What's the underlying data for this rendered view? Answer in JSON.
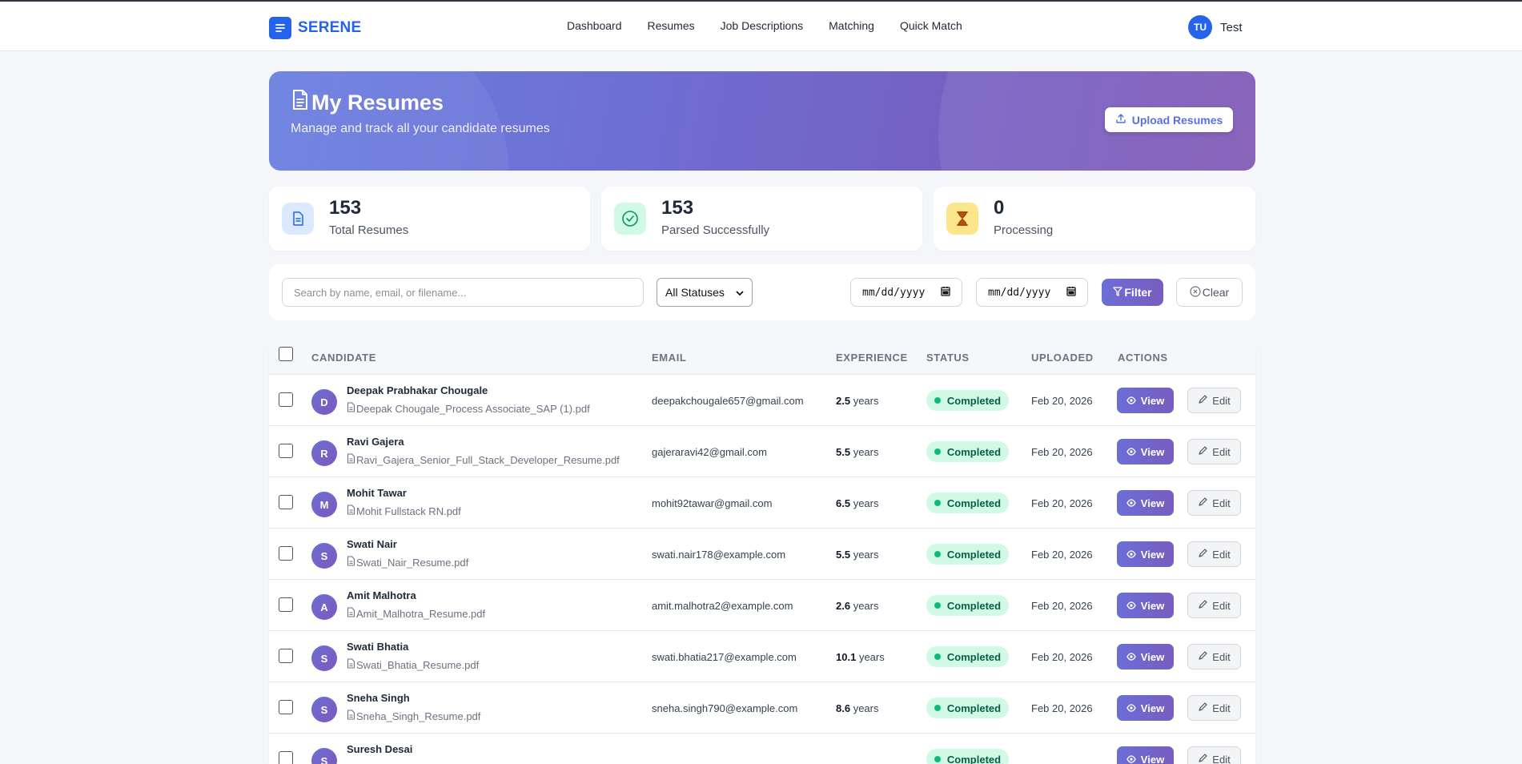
{
  "nav": {
    "brand": "SERENE",
    "links": [
      "Dashboard",
      "Resumes",
      "Job Descriptions",
      "Matching",
      "Quick Match"
    ],
    "user_initials": "TU",
    "user_name": "Test"
  },
  "hero": {
    "title": "My Resumes",
    "subtitle": "Manage and track all your candidate resumes",
    "upload_label": "Upload Resumes"
  },
  "stats": [
    {
      "value": "153",
      "label": "Total Resumes",
      "icon": "document-icon",
      "color": "#dbeafe"
    },
    {
      "value": "153",
      "label": "Parsed Successfully",
      "icon": "check-circle-icon",
      "color": "#d1fae5"
    },
    {
      "value": "0",
      "label": "Processing",
      "icon": "hourglass-icon",
      "color": "#fef3c7"
    }
  ],
  "filters": {
    "search_placeholder": "Search by name, email, or filename...",
    "status_value": "All Statuses",
    "date_from_placeholder": "mm/dd/yyyy",
    "date_to_placeholder": "mm/dd/yyyy",
    "filter_label": "Filter",
    "clear_label": "Clear"
  },
  "table": {
    "columns": [
      "CANDIDATE",
      "EMAIL",
      "EXPERIENCE",
      "STATUS",
      "UPLOADED",
      "ACTIONS"
    ],
    "experience_unit": "years",
    "view_label": "View",
    "edit_label": "Edit",
    "rows": [
      {
        "initial": "D",
        "name": "Deepak Prabhakar Chougale",
        "file": "Deepak Chougale_Process Associate_SAP (1).pdf",
        "email": "deepakchougale657@gmail.com",
        "experience": "2.5",
        "status": "Completed",
        "uploaded": "Feb 20, 2026"
      },
      {
        "initial": "R",
        "name": "Ravi Gajera",
        "file": "Ravi_Gajera_Senior_Full_Stack_Developer_Resume.pdf",
        "email": "gajeraravi42@gmail.com",
        "experience": "5.5",
        "status": "Completed",
        "uploaded": "Feb 20, 2026"
      },
      {
        "initial": "M",
        "name": "Mohit Tawar",
        "file": "Mohit Fullstack RN.pdf",
        "email": "mohit92tawar@gmail.com",
        "experience": "6.5",
        "status": "Completed",
        "uploaded": "Feb 20, 2026"
      },
      {
        "initial": "S",
        "name": "Swati Nair",
        "file": "Swati_Nair_Resume.pdf",
        "email": "swati.nair178@example.com",
        "experience": "5.5",
        "status": "Completed",
        "uploaded": "Feb 20, 2026"
      },
      {
        "initial": "A",
        "name": "Amit Malhotra",
        "file": "Amit_Malhotra_Resume.pdf",
        "email": "amit.malhotra2@example.com",
        "experience": "2.6",
        "status": "Completed",
        "uploaded": "Feb 20, 2026"
      },
      {
        "initial": "S",
        "name": "Swati Bhatia",
        "file": "Swati_Bhatia_Resume.pdf",
        "email": "swati.bhatia217@example.com",
        "experience": "10.1",
        "status": "Completed",
        "uploaded": "Feb 20, 2026"
      },
      {
        "initial": "S",
        "name": "Sneha Singh",
        "file": "Sneha_Singh_Resume.pdf",
        "email": "sneha.singh790@example.com",
        "experience": "8.6",
        "status": "Completed",
        "uploaded": "Feb 20, 2026"
      },
      {
        "initial": "S",
        "name": "Suresh Desai",
        "file": "",
        "email": "",
        "experience": "",
        "status": "Completed",
        "uploaded": ""
      }
    ]
  }
}
